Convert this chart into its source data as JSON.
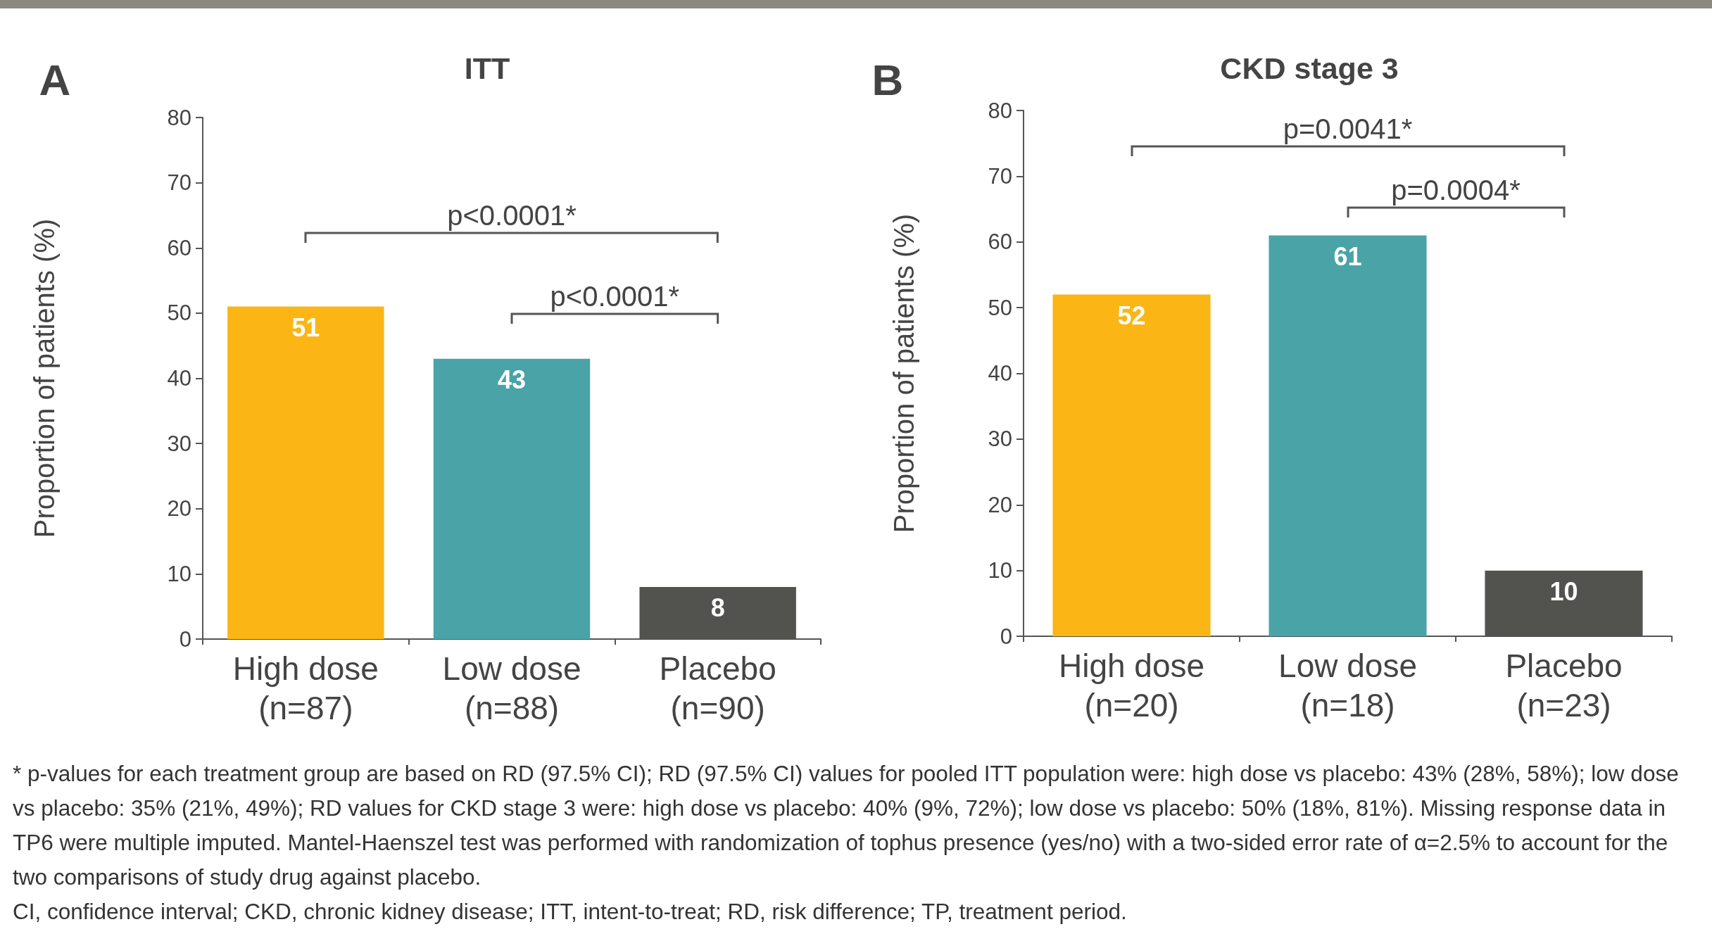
{
  "chart_data": [
    {
      "type": "bar",
      "title": "ITT",
      "ylabel": "Proportion of patients (%)",
      "categories": [
        "High dose (n=87)",
        "Low dose (n=88)",
        "Placebo (n=90)"
      ],
      "values": [
        51,
        43,
        8
      ],
      "colors": [
        "#fbb615",
        "#4aa3a6",
        "#52524e"
      ],
      "ylim": [
        0,
        80
      ],
      "yticks": [
        0,
        10,
        20,
        30,
        40,
        50,
        60,
        70,
        80
      ],
      "data_labels": true,
      "annotations": [
        "A",
        "p<0.0001*",
        "p<0.0001*"
      ]
    },
    {
      "type": "bar",
      "title": "CKD stage 3",
      "ylabel": "Proportion of patients (%)",
      "categories": [
        "High dose (n=20)",
        "Low dose (n=18)",
        "Placebo (n=23)"
      ],
      "values": [
        52,
        61,
        10
      ],
      "colors": [
        "#fbb615",
        "#4aa3a6",
        "#52524e"
      ],
      "ylim": [
        0,
        80
      ],
      "yticks": [
        0,
        10,
        20,
        30,
        40,
        50,
        60,
        70,
        80
      ],
      "data_labels": true,
      "annotations": [
        "B",
        "p=0.0041*",
        "p=0.0004*",
        "* p-values for each treatment group are based on RD (97.5% CI); RD (97.5% CI) values for pooled ITT population were: high dose vs placebo: 43% (28%, 58%); low dose vs placebo: 35% (21%, 49%); RD values for CKD stage 3 were: high dose vs placebo: 40% (9%, 72%); low dose vs placebo: 50% (18%, 81%). Missing response data in TP6 were multiple imputed. Mantel-Haenszel test was performed with randomization of tophus presence (yes/no) with a two-sided error rate of α=2.5% to account for the two comparisons of study drug against placebo.",
        "CI, confidence interval; CKD, chronic kidney disease; ITT, intent-to-treat; RD, risk difference; TP, treatment period."
      ]
    }
  ]
}
